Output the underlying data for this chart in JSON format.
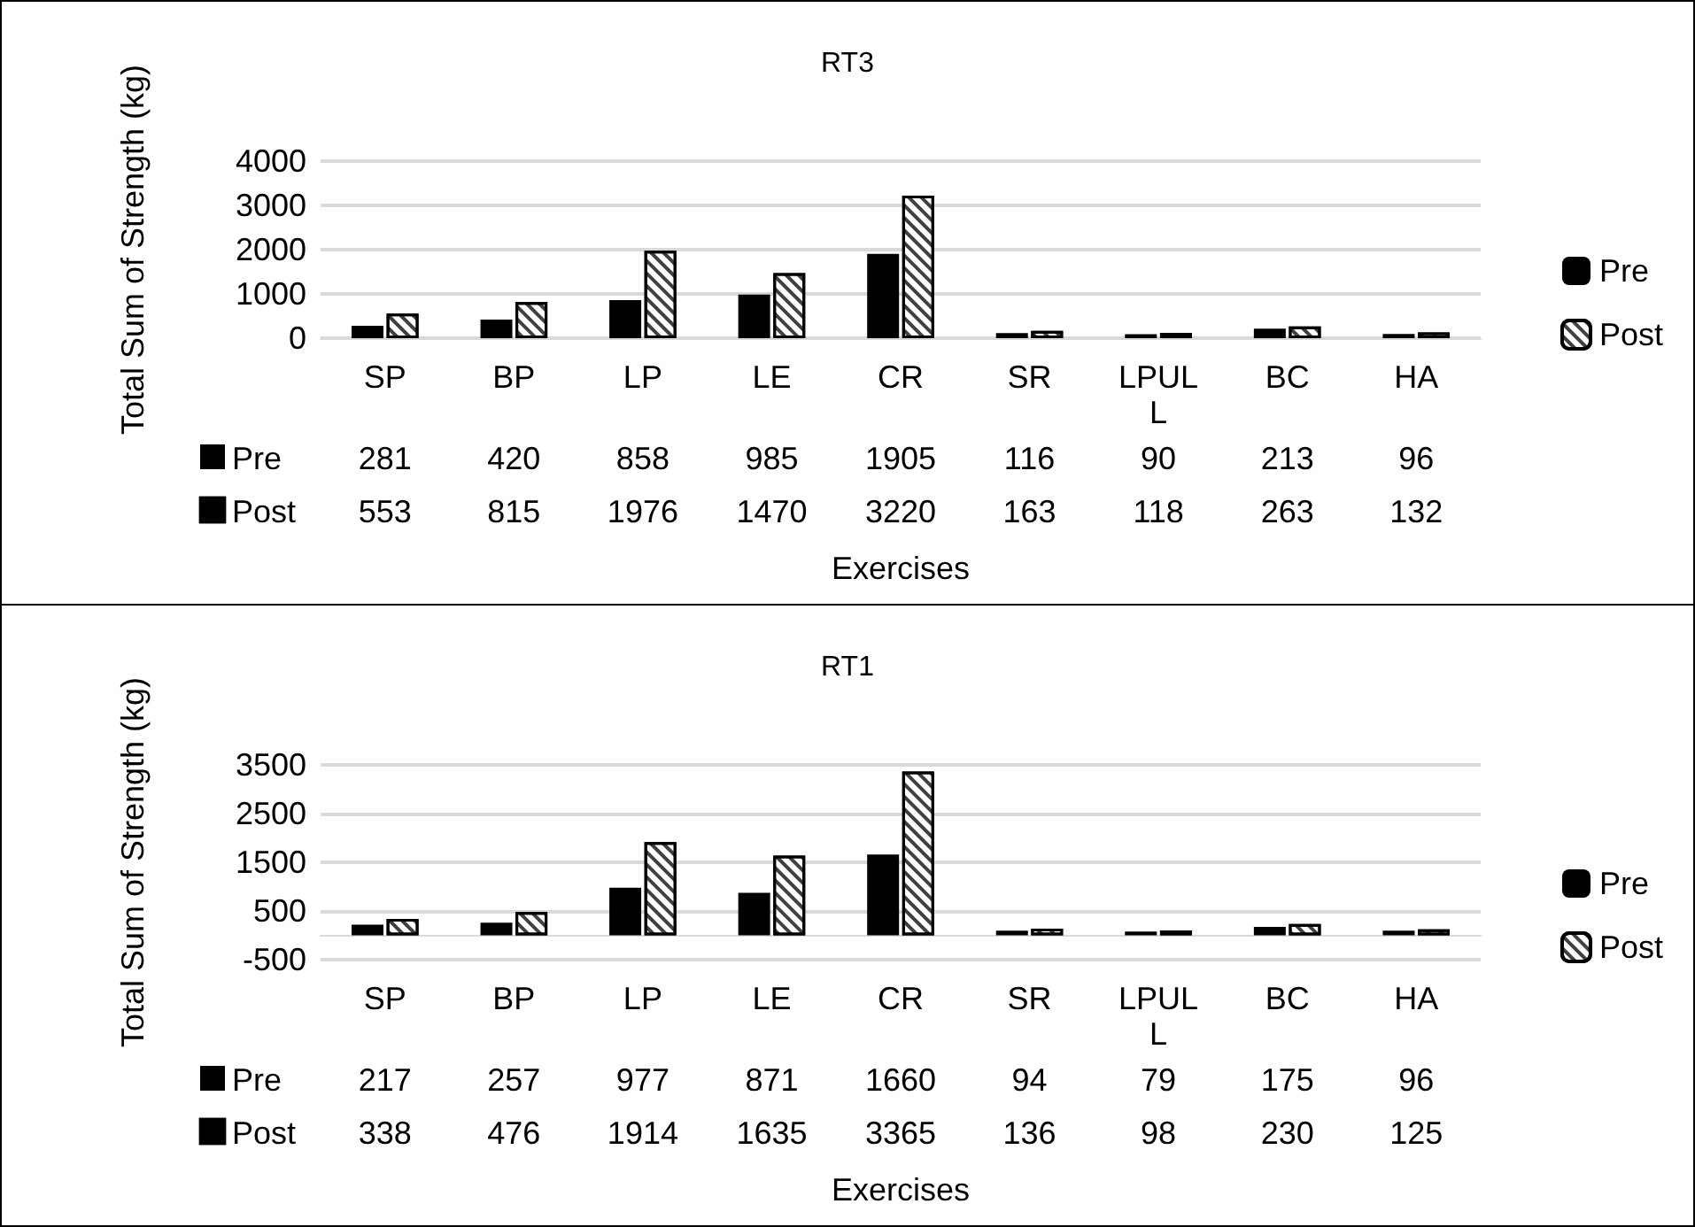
{
  "chart_data": [
    {
      "type": "bar",
      "title": "RT3",
      "xlabel": "Exercises",
      "ylabel": "Total Sum of Strength (kg)",
      "categories": [
        "SP",
        "BP",
        "LP",
        "LE",
        "CR",
        "SR",
        "LPULL",
        "BC",
        "HA"
      ],
      "series": [
        {
          "name": "Pre",
          "color": "#000000",
          "values": [
            281,
            420,
            858,
            985,
            1905,
            116,
            90,
            213,
            96
          ]
        },
        {
          "name": "Post",
          "color": "#ffffff",
          "values": [
            553,
            815,
            1976,
            1470,
            3220,
            163,
            118,
            263,
            132
          ]
        }
      ],
      "ylim": [
        0,
        4000
      ],
      "yticks": [
        0,
        1000,
        2000,
        3000,
        4000
      ],
      "grid": "y",
      "legend": "right",
      "data_labels": true
    },
    {
      "type": "bar",
      "title": "RT1",
      "xlabel": "Exercises",
      "ylabel": "Total Sum of Strength (kg)",
      "categories": [
        "SP",
        "BP",
        "LP",
        "LE",
        "CR",
        "SR",
        "LPULL",
        "BC",
        "HA"
      ],
      "series": [
        {
          "name": "Pre",
          "color": "#000000",
          "values": [
            217,
            257,
            977,
            871,
            1660,
            94,
            79,
            175,
            96
          ]
        },
        {
          "name": "Post",
          "color": "#ffffff",
          "values": [
            338,
            476,
            1914,
            1635,
            3365,
            136,
            98,
            230,
            125
          ]
        }
      ],
      "ylim": [
        -500,
        3500
      ],
      "yticks": [
        -500,
        500,
        1500,
        2500,
        3500
      ],
      "grid": "y",
      "legend": "right",
      "data_labels": true
    }
  ]
}
